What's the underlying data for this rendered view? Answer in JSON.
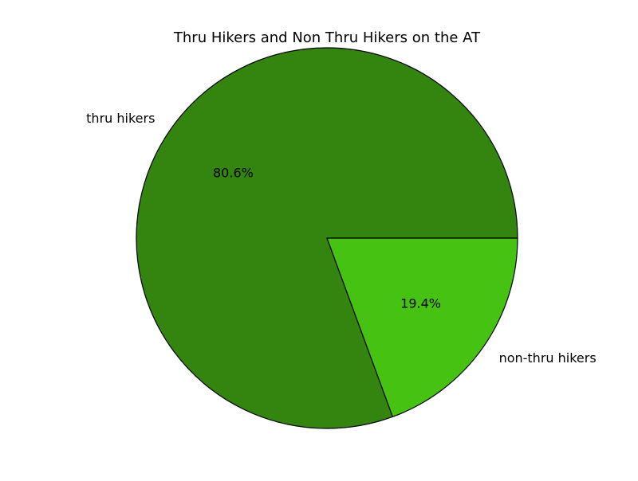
{
  "chart_data": {
    "type": "pie",
    "title": "Thru Hikers and Non Thru Hikers on the AT",
    "slices": [
      {
        "label": "thru hikers",
        "value": 80.6,
        "pct_label": "80.6%",
        "color": "#348410"
      },
      {
        "label": "non-thru hikers",
        "value": 19.4,
        "pct_label": "19.4%",
        "color": "#46c213"
      }
    ],
    "start_angle_deg": 0,
    "direction": "counterclockwise",
    "edge_color": "#000000",
    "legend": "none"
  }
}
